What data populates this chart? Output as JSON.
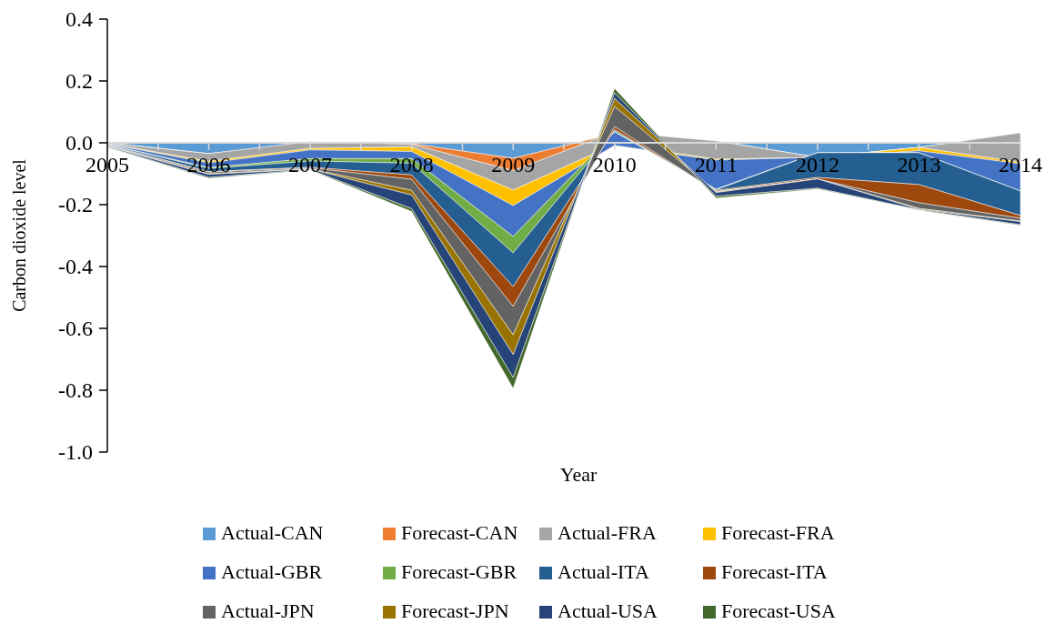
{
  "chart_data": {
    "type": "area",
    "stacked": true,
    "xlabel": "Year",
    "ylabel": "Carbon dioxide level",
    "categories": [
      "2005",
      "2006",
      "2007",
      "2008",
      "2009",
      "2010",
      "2011",
      "2012",
      "2013",
      "2014"
    ],
    "ylim": [
      -1.0,
      0.4
    ],
    "yticks": [
      {
        "value": -1.0,
        "label": "-1.0"
      },
      -0.8,
      -0.6,
      -0.4,
      -0.2,
      {
        "value": 0,
        "label": "0.0"
      },
      0.2,
      0.4
    ],
    "grid": false,
    "legend": "bottom",
    "series": [
      {
        "name": "Actual-CAN",
        "color": "#5b9bd5",
        "values": [
          0,
          -0.035,
          -0.002,
          -0.003,
          -0.05,
          0.03,
          0.006,
          -0.047,
          -0.015,
          0.032
        ]
      },
      {
        "name": "Forecast-CAN",
        "color": "#ed7d31",
        "values": [
          0,
          0,
          0.006,
          -0.002,
          -0.04,
          0.005,
          0,
          0,
          0,
          0
        ]
      },
      {
        "name": "Actual-FRA",
        "color": "#a5a5a5",
        "values": [
          -0.002,
          -0.025,
          -0.022,
          -0.008,
          -0.063,
          -0.04,
          -0.059,
          0,
          0,
          -0.095
        ]
      },
      {
        "name": "Forecast-FRA",
        "color": "#ffc000",
        "values": [
          -0.001,
          -0.005,
          -0.005,
          -0.015,
          -0.05,
          -0.003,
          -0.003,
          0,
          -0.011,
          -0.005
        ]
      },
      {
        "name": "Actual-GBR",
        "color": "#4472c4",
        "values": [
          -0.002,
          -0.015,
          -0.028,
          -0.023,
          -0.1,
          0.043,
          -0.094,
          0.015,
          -0.006,
          -0.088
        ]
      },
      {
        "name": "Forecast-GBR",
        "color": "#70ad47",
        "values": [
          -0.001,
          -0.003,
          -0.008,
          -0.015,
          -0.053,
          0.004,
          -0.002,
          0,
          0,
          0
        ]
      },
      {
        "name": "Actual-ITA",
        "color": "#255e91",
        "values": [
          -0.002,
          -0.01,
          -0.02,
          -0.038,
          -0.109,
          0.004,
          -0.002,
          -0.08,
          -0.103,
          -0.079
        ]
      },
      {
        "name": "Forecast-ITA",
        "color": "#9e480e",
        "values": [
          -0.001,
          -0.002,
          -0.002,
          -0.014,
          -0.064,
          0.01,
          -0.003,
          -0.005,
          -0.059,
          -0.009
        ]
      },
      {
        "name": "Actual-JPN",
        "color": "#636363",
        "values": [
          -0.002,
          -0.005,
          -0.003,
          -0.036,
          -0.092,
          0.065,
          -0.002,
          0,
          -0.018,
          -0.009
        ]
      },
      {
        "name": "Forecast-JPN",
        "color": "#997300",
        "values": [
          -0.001,
          -0.002,
          -0.001,
          -0.015,
          -0.064,
          0.026,
          -0.002,
          0,
          -0.003,
          -0.002
        ]
      },
      {
        "name": "Actual-USA",
        "color": "#264478",
        "values": [
          -0.002,
          -0.01,
          -0.002,
          -0.044,
          -0.074,
          0.018,
          -0.012,
          -0.03,
          -0.002,
          -0.01
        ]
      },
      {
        "name": "Forecast-USA",
        "color": "#43682b",
        "values": [
          -0.001,
          -0.003,
          -0.001,
          -0.009,
          -0.035,
          0.014,
          -0.006,
          -0.002,
          -0.001,
          -0.002
        ]
      }
    ]
  }
}
